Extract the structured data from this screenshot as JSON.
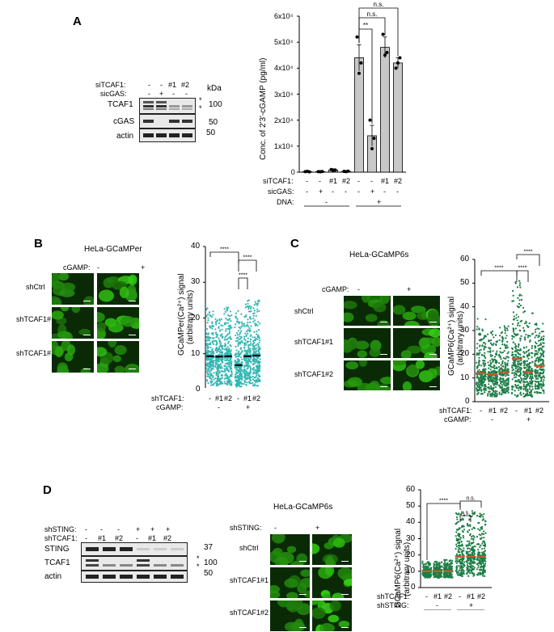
{
  "panelA": {
    "letter": "A",
    "blot": {
      "row_labels": [
        "siTCAF1:",
        "sicGAS:"
      ],
      "row1_values": [
        "-",
        "-",
        "#1",
        "#2"
      ],
      "row2_values": [
        "-",
        "+",
        "-",
        "-"
      ],
      "bands": [
        "TCAF1",
        "cGAS",
        "actin"
      ],
      "kda_title": "kDa",
      "markers": [
        "100",
        "50",
        "50"
      ],
      "star": "*"
    },
    "chart": {
      "ylabel": "Conc. of 2'3'-cGAMP (pg/ml)",
      "yticks": [
        "0",
        "1x10⁴",
        "2x10⁴",
        "3x10⁴",
        "4x10⁴",
        "5x10⁴",
        "6x10⁴"
      ],
      "row_labels": [
        "siTCAF1:",
        "sicGAS:",
        "DNA:"
      ],
      "row1": [
        "-",
        "-",
        "#1",
        "#2",
        "-",
        "-",
        "#1",
        "#2"
      ],
      "row2": [
        "-",
        "+",
        "-",
        "-",
        "-",
        "+",
        "-",
        "-"
      ],
      "dna": [
        "-",
        "+"
      ],
      "sig": [
        "n.s.",
        "n.s.",
        "**"
      ]
    }
  },
  "panelB": {
    "letter": "B",
    "cell_line": "HeLa-GCaMPer",
    "treat_label": "cGAMP:",
    "treat_values": [
      "-",
      "+"
    ],
    "rows": [
      "shCtrl",
      "shTCAF1#1",
      "shTCAF1#2"
    ],
    "ylabel": "GCaMPer(Ca²⁺) signal",
    "ylabel2": "(arbitrary units)",
    "yticks": [
      "0",
      "10",
      "20",
      "30",
      "40"
    ],
    "xrow_labels": [
      "shTCAF1:",
      "cGAMP:"
    ],
    "xrow1": [
      "-",
      "#1",
      "#2",
      "-",
      "#1",
      "#2"
    ],
    "xrow2": [
      "-",
      "+"
    ],
    "sig": [
      "****",
      "****",
      "****"
    ]
  },
  "panelC": {
    "letter": "C",
    "cell_line": "HeLa-GCaMP6s",
    "treat_label": "cGAMP:",
    "treat_values": [
      "-",
      "+"
    ],
    "rows": [
      "shCtrl",
      "shTCAF1#1",
      "shTCAF1#2"
    ],
    "ylabel": "GCaMP6(Ca²⁺) signal",
    "ylabel2": "(arbitrary units)",
    "yticks": [
      "0",
      "10",
      "20",
      "30",
      "40",
      "50",
      "60"
    ],
    "xrow_labels": [
      "shTCAF1:",
      "cGAMP:"
    ],
    "xrow1": [
      "-",
      "#1",
      "#2",
      "-",
      "#1",
      "#2"
    ],
    "xrow2": [
      "-",
      "+"
    ],
    "sig": [
      "****",
      "****",
      "****"
    ]
  },
  "panelD": {
    "letter": "D",
    "blot": {
      "row_labels": [
        "shSTING:",
        "shTCAF1:"
      ],
      "row1_values": [
        "-",
        "-",
        "-",
        "+",
        "+",
        "+"
      ],
      "row2_values": [
        "-",
        "#1",
        "#2",
        "-",
        "#1",
        "#2"
      ],
      "bands": [
        "STING",
        "TCAF1",
        "actin"
      ],
      "markers": [
        "37",
        "100",
        "50"
      ],
      "star": "*"
    },
    "cell_line": "HeLa-GCaMP6s",
    "treat_label": "shSTING:",
    "treat_values": [
      "-",
      "+"
    ],
    "rows": [
      "shCtrl",
      "shTCAF1#1",
      "shTCAF1#2"
    ],
    "ylabel": "GCaMP6(Ca²⁺) signal",
    "ylabel2": "(arbitrary units)",
    "yticks": [
      "0",
      "10",
      "20",
      "30",
      "40",
      "50",
      "60"
    ],
    "xrow_labels": [
      "shTCAF1:",
      "shSTING:"
    ],
    "xrow1": [
      "-",
      "#1",
      "#2",
      "-",
      "#1",
      "#2"
    ],
    "xrow2": [
      "-",
      "+"
    ],
    "sig": [
      "****",
      "n.s.",
      "n.s."
    ]
  },
  "chart_data": [
    {
      "type": "bar",
      "title": "",
      "ylabel": "Conc. of 2'3'-cGAMP (pg/ml)",
      "ylim": [
        0,
        60000
      ],
      "categories": [
        "-/-/-",
        "-/+/-",
        "#1/-/-",
        "#2/-/-",
        "-/-/+",
        "-/+/+",
        "#1/-/+",
        "#2/-/+"
      ],
      "values": [
        200,
        200,
        800,
        300,
        44000,
        14000,
        48000,
        42000
      ],
      "errors": [
        100,
        100,
        500,
        200,
        5000,
        4000,
        4000,
        2000
      ],
      "points": [
        [
          200,
          300,
          100
        ],
        [
          200,
          150,
          250
        ],
        [
          1000,
          600,
          800
        ],
        [
          300,
          200,
          400
        ],
        [
          52000,
          38000,
          42000
        ],
        [
          20000,
          9000,
          13000
        ],
        [
          53000,
          45000,
          46000
        ],
        [
          40000,
          42000,
          44000
        ]
      ],
      "grid": false
    },
    {
      "type": "scatter",
      "title": "",
      "ylabel": "GCaMPer(Ca²⁺) signal (arbitrary units)",
      "ylim": [
        0,
        40
      ],
      "categories": [
        "- / -",
        "#1 / -",
        "#2 / -",
        "- / +",
        "#1 / +",
        "#2 / +"
      ],
      "medians": [
        9.3,
        9.2,
        9.3,
        6.8,
        9.3,
        9.5
      ],
      "max": [
        23,
        20,
        23,
        22,
        25,
        25
      ],
      "min": [
        1,
        1,
        1,
        0.5,
        1,
        1
      ],
      "color": "#33b6b4",
      "median_color": "#000000"
    },
    {
      "type": "scatter",
      "title": "",
      "ylabel": "GCaMP6(Ca²⁺) signal (arbitrary units)",
      "ylim": [
        0,
        60
      ],
      "categories": [
        "- / -",
        "#1 / -",
        "#2 / -",
        "- / +",
        "#1 / +",
        "#2 / +"
      ],
      "medians": [
        12,
        11.5,
        12.5,
        18,
        12.5,
        15
      ],
      "max": [
        35,
        30,
        32,
        52,
        40,
        33
      ],
      "min": [
        3,
        2,
        3,
        2,
        2,
        3
      ],
      "color": "#1d7d47",
      "median_color": "#d0582a"
    },
    {
      "type": "scatter",
      "title": "",
      "ylabel": "GCaMP6(Ca²⁺) signal (arbitrary units)",
      "ylim": [
        0,
        60
      ],
      "categories": [
        "- / -",
        "#1 / -",
        "#2 / -",
        "- / +",
        "#1 / +",
        "#2 / +"
      ],
      "medians": [
        10,
        10,
        10,
        19,
        19,
        19
      ],
      "max": [
        16,
        16,
        17,
        46,
        47,
        46
      ],
      "min": [
        6,
        6,
        6,
        7,
        7,
        7
      ],
      "color": "#1d7d47",
      "median_color": "#d0582a"
    }
  ]
}
